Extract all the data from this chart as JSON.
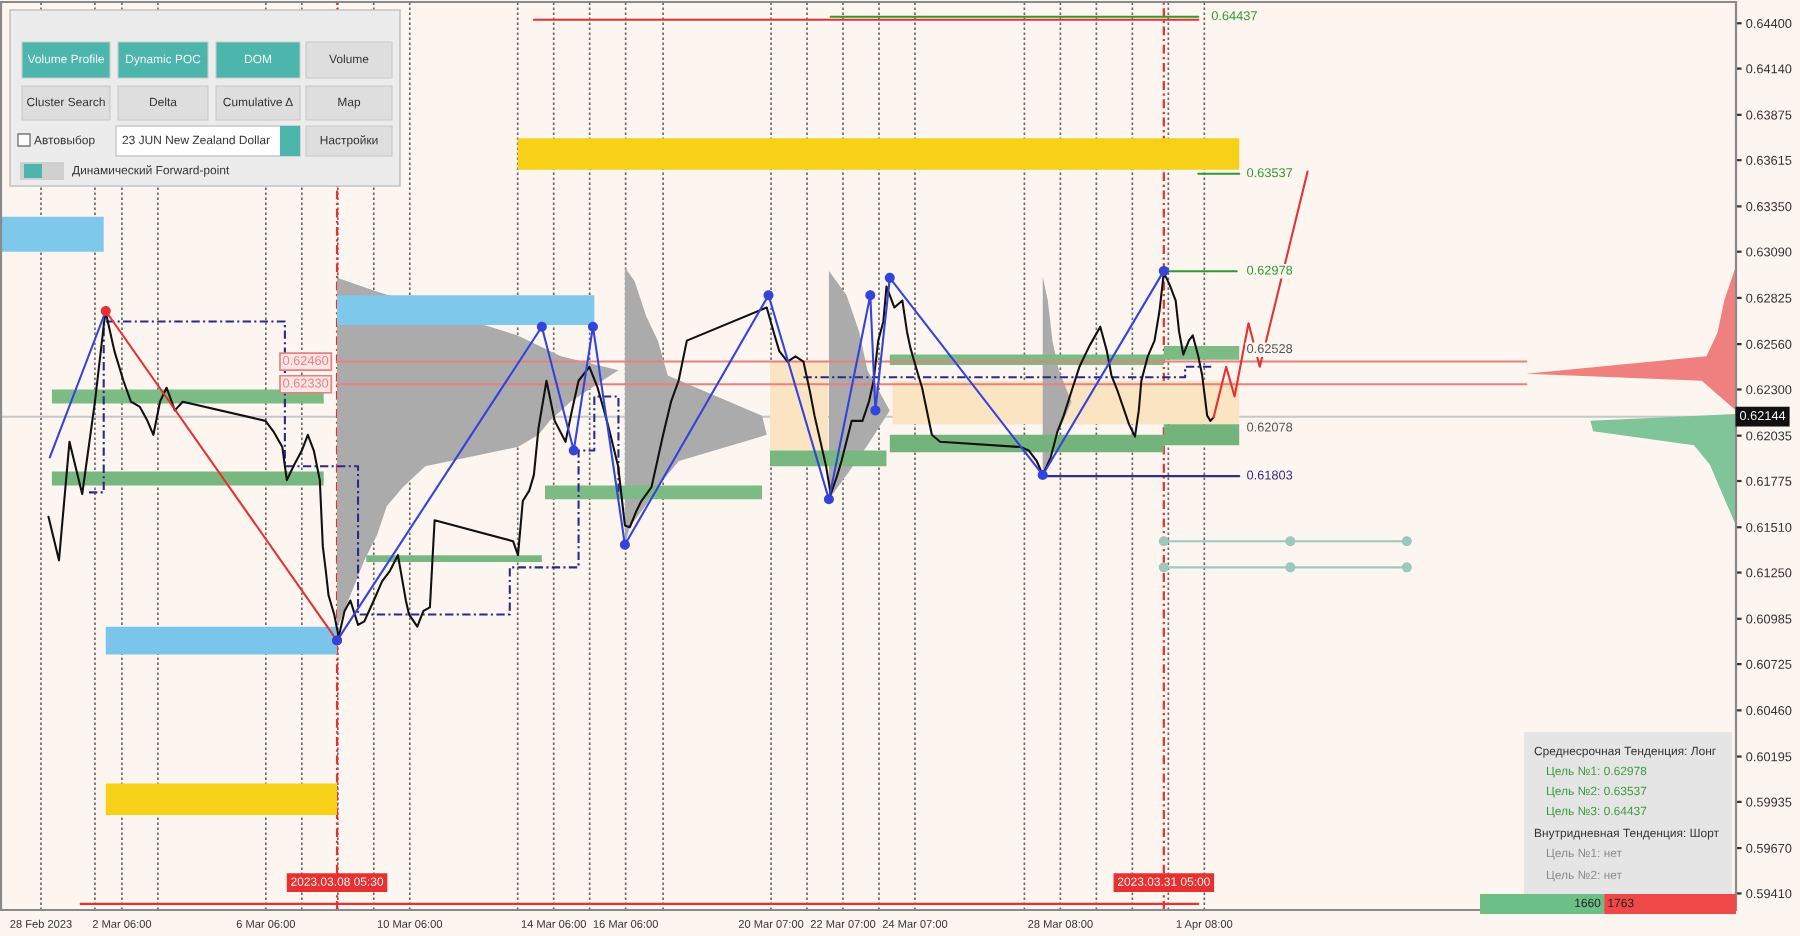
{
  "chart_data": [
    {
      "type": "line",
      "xlim": [
        "2023-02-26T21:20",
        "2023-04-16T02:40"
      ],
      "ylim": [
        0.59315,
        0.64522
      ],
      "xticks": [
        {
          "value": "2023-02-28T00:00",
          "label": "28 Feb 2023"
        },
        {
          "value": "2023-03-01T12:00",
          "label": null
        },
        {
          "value": "2023-03-02T06:00",
          "label": "2 Mar 06:00"
        },
        {
          "value": "2023-03-03T06:00",
          "label": null
        },
        {
          "value": "2023-03-06T06:00",
          "label": "6 Mar 06:00"
        },
        {
          "value": "2023-03-07T06:00",
          "label": null
        },
        {
          "value": "2023-03-08T06:00",
          "label": null
        },
        {
          "value": "2023-03-09T06:00",
          "label": null
        },
        {
          "value": "2023-03-10T06:00",
          "label": "10 Mar 06:00"
        },
        {
          "value": "2023-03-13T06:00",
          "label": null
        },
        {
          "value": "2023-03-14T06:00",
          "label": "14 Mar 06:00"
        },
        {
          "value": "2023-03-15T06:00",
          "label": null
        },
        {
          "value": "2023-03-16T06:00",
          "label": "16 Mar 06:00"
        },
        {
          "value": "2023-03-17T07:00",
          "label": null
        },
        {
          "value": "2023-03-20T07:00",
          "label": "20 Mar 07:00"
        },
        {
          "value": "2023-03-21T07:00",
          "label": null
        },
        {
          "value": "2023-03-22T07:00",
          "label": "22 Mar 07:00"
        },
        {
          "value": "2023-03-23T07:00",
          "label": null
        },
        {
          "value": "2023-03-24T07:00",
          "label": "24 Mar 07:00"
        },
        {
          "value": "2023-03-27T08:00",
          "label": null
        },
        {
          "value": "2023-03-28T08:00",
          "label": "28 Mar 08:00"
        },
        {
          "value": "2023-03-29T08:00",
          "label": null
        },
        {
          "value": "2023-03-30T08:00",
          "label": null
        },
        {
          "value": "2023-03-31T08:00",
          "label": null
        },
        {
          "value": "2023-04-01T08:00",
          "label": "1 Apr 08:00"
        }
      ],
      "yticks": [
        {
          "value": 0.644,
          "label": "0.64400"
        },
        {
          "value": 0.6414,
          "label": "0.64140"
        },
        0.63875,
        0.63615,
        {
          "value": 0.6335,
          "label": "0.63350"
        },
        {
          "value": 0.6309,
          "label": "0.63090"
        },
        0.62825,
        {
          "value": 0.6256,
          "label": "0.62560"
        },
        {
          "value": 0.623,
          "label": "0.62300"
        },
        0.62035,
        0.61775,
        {
          "value": 0.6151,
          "label": "0.61510"
        },
        {
          "value": 0.6125,
          "label": "0.61250"
        },
        0.60985,
        0.60725,
        {
          "value": 0.6046,
          "label": "0.60460"
        },
        0.60195,
        0.59935,
        {
          "value": 0.5967,
          "label": "0.59670"
        },
        {
          "value": 0.5941,
          "label": "0.59410"
        }
      ],
      "grid": "x",
      "series": [
        {
          "color": "#fbe4c2",
          "x": [
            "2023-03-20T06:17",
            "2023-03-21T21:00"
          ],
          "values": [
            null,
            null
          ],
          "lower": [
            0.6195,
            0.6195
          ],
          "upper": [
            0.6246,
            0.6246
          ]
        },
        {
          "color": "#fbe4c2",
          "x": [
            "2023-03-23T16:00",
            "2023-04-02T07:18"
          ],
          "values": [
            null,
            null
          ],
          "lower": [
            0.621,
            0.621
          ],
          "upper": [
            0.6235,
            0.6235
          ]
        },
        {
          "type": "area",
          "color": "#ababab",
          "x": [
            "2023-03-08T05:30",
            "2023-03-09T08:24",
            "2023-03-13T06:00",
            "2023-03-14T10:48",
            "2023-03-16T01:12",
            "2023-03-15T14:24",
            "2023-03-14T17:18",
            "2023-03-14T03:24",
            "2023-03-13T19:54",
            "2023-03-13T06:00",
            "2023-03-10T16:19",
            "2023-03-10T01:24",
            "2023-03-09T14:36",
            "2023-03-09T08:24",
            "2023-03-08T23:42",
            "2023-03-08T14:24",
            "2023-03-08T07:30",
            "2023-03-08T05:30"
          ],
          "values": [
            0.6294,
            0.6286,
            0.6261,
            0.6249,
            0.6241,
            0.6235,
            0.6223,
            0.6212,
            0.6204,
            0.6197,
            0.6186,
            0.6174,
            0.6163,
            0.6147,
            0.6132,
            0.6112,
            0.6097,
            0.6095
          ]
        },
        {
          "type": "area",
          "color": "#ababab",
          "x": [
            "2023-03-16T05:30",
            "2023-03-16T12:00",
            "2023-03-16T19:45",
            "2023-03-17T03:30",
            "2023-03-17T10:07",
            "2023-03-20T01:00",
            "2023-03-20T04:07",
            "2023-03-17T17:34",
            "2023-03-17T06:45",
            "2023-03-16T19:45",
            "2023-03-16T08:45",
            "2023-03-16T05:30"
          ],
          "values": [
            0.63,
            0.6292,
            0.6272,
            0.6258,
            0.6238,
            0.6215,
            0.6204,
            0.6189,
            0.6178,
            0.6164,
            0.6151,
            0.6141
          ]
        },
        {
          "type": "area",
          "color": "#ababab",
          "x": [
            "2023-03-21T21:36",
            "2023-03-22T09:24",
            "2023-03-22T17:48",
            "2023-03-22T23:18",
            "2023-03-23T14:12",
            "2023-03-22T23:18",
            "2023-03-22T09:24",
            "2023-03-21T21:36"
          ],
          "values": [
            0.6298,
            0.6284,
            0.6263,
            0.6241,
            0.6218,
            0.6198,
            0.6181,
            0.6167
          ]
        },
        {
          "type": "area",
          "color": "#ababab",
          "x": [
            "2023-03-27T20:12",
            "2023-03-27T23:36",
            "2023-03-28T02:42",
            "2023-03-28T07:00",
            "2023-03-28T15:24",
            "2023-03-28T07:00",
            "2023-03-28T00:36",
            "2023-03-27T20:12"
          ],
          "values": [
            0.6295,
            0.6281,
            0.6258,
            0.6241,
            0.6223,
            0.6206,
            0.6191,
            0.6181
          ]
        },
        {
          "type": "area",
          "color": "#f08080",
          "x": [
            "2023-04-16T02:40",
            "2023-04-15T18:48",
            "2023-04-15T14:30",
            "2023-04-15T07:00",
            "2023-04-10T06:48",
            "2023-04-15T03:54",
            "2023-04-15T14:30",
            "2023-04-16T02:40"
          ],
          "values": [
            0.6301,
            0.6281,
            0.6263,
            0.6249,
            0.6239,
            0.6235,
            0.6227,
            0.6218
          ]
        },
        {
          "type": "area",
          "color": "#80c49a",
          "x": [
            "2023-04-16T02:40",
            "2023-04-12T01:30",
            "2023-04-12T03:24",
            "2023-04-14T22:36",
            "2023-04-15T09:12",
            "2023-04-15T16:36",
            "2023-04-16T02:40"
          ],
          "values": [
            0.6216,
            0.6212,
            0.6206,
            0.6198,
            0.6187,
            0.6172,
            0.6152
          ]
        },
        {
          "color": "#7dbb85",
          "x": [
            "2023-02-28T07:18",
            "2023-03-07T20:36"
          ],
          "values": [
            null,
            null
          ],
          "lower": [
            0.6222,
            0.6222
          ],
          "upper": [
            0.623,
            0.623
          ]
        },
        {
          "color": "#78b880",
          "x": [
            "2023-02-28T07:18",
            "2023-03-07T20:36"
          ],
          "values": [
            null,
            null
          ],
          "lower": [
            0.6175,
            0.6175
          ],
          "upper": [
            0.6183,
            0.6183
          ]
        },
        {
          "color": "#7dbb85",
          "x": [
            "2023-03-14T00:12",
            "2023-03-20T01:00"
          ],
          "values": [
            null,
            null
          ],
          "lower": [
            0.6167,
            0.6167
          ],
          "upper": [
            0.6175,
            0.6175
          ]
        },
        {
          "color": "#78b880",
          "x": [
            "2023-03-20T06:17",
            "2023-03-23T12:00"
          ],
          "values": [
            null,
            null
          ],
          "lower": [
            0.6186,
            0.6186
          ],
          "upper": [
            0.6195,
            0.6195
          ]
        },
        {
          "color": "#7dbb85",
          "x": [
            "2023-03-23T14:12",
            "2023-03-31T05:00",
            "2023-03-31T05:00",
            "2023-04-02T07:18"
          ],
          "values": [
            null,
            null,
            null,
            null
          ],
          "lower": [
            0.6244,
            0.6244,
            0.6247,
            0.6247
          ],
          "upper": [
            0.625,
            0.625,
            0.6255,
            0.6255
          ]
        },
        {
          "color": "#74b47c",
          "x": [
            "2023-03-23T14:12",
            "2023-03-31T05:00",
            "2023-03-31T05:00",
            "2023-04-02T07:18"
          ],
          "values": [
            null,
            null,
            null,
            null
          ],
          "lower": [
            0.6194,
            0.6194,
            0.6198,
            0.6198
          ],
          "upper": [
            0.6204,
            0.6204,
            0.621,
            0.621
          ]
        },
        {
          "color": "#78b880",
          "x": [
            "2023-03-09T01:00",
            "2023-03-13T22:06"
          ],
          "values": [
            null,
            null
          ],
          "lower": [
            0.6131,
            0.6131
          ],
          "upper": [
            0.6135,
            0.6135
          ]
        },
        {
          "color": "#f7d117",
          "x": [
            "2023-03-13T06:00",
            "2023-04-02T07:18"
          ],
          "values": [
            null,
            null
          ],
          "lower": [
            0.6356,
            0.6356
          ],
          "upper": [
            0.6374,
            0.6374
          ]
        },
        {
          "color": "#7ec8ec",
          "x": [
            "2023-02-26T21:20",
            "2023-03-01T17:51"
          ],
          "values": [
            null,
            null
          ],
          "lower": [
            0.6309,
            0.6309
          ],
          "upper": [
            0.6329,
            0.6329
          ]
        },
        {
          "color": "#7ec8ec",
          "x": [
            "2023-03-08T05:30",
            "2023-03-15T09:06"
          ],
          "values": [
            null,
            null
          ],
          "lower": [
            0.6267,
            0.6267
          ],
          "upper": [
            0.6284,
            0.6284
          ]
        },
        {
          "color": "#7bc5ea",
          "x": [
            "2023-03-01T19:12",
            "2023-03-08T05:30"
          ],
          "values": [
            null,
            null
          ],
          "lower": [
            0.6078,
            0.6078
          ],
          "upper": [
            0.6094,
            0.6094
          ]
        },
        {
          "color": "#f7d117",
          "x": [
            "2023-03-01T19:12",
            "2023-03-08T05:30"
          ],
          "values": [
            null,
            null
          ],
          "lower": [
            0.5986,
            0.5986
          ],
          "upper": [
            0.6004,
            0.6004
          ]
        },
        {
          "color": "#e83030",
          "x": [
            "2023-03-13T16:48",
            "2023-04-01T04:00"
          ],
          "values": [
            0.6442,
            0.6442
          ]
        },
        {
          "color": "#e83030",
          "x": [
            "2023-03-01T02:30",
            "2023-04-01T04:00"
          ],
          "values": [
            0.5935,
            0.5935
          ]
        },
        {
          "color": "#2e9a2e",
          "x": [
            "2023-03-21T22:48",
            "2023-04-01T04:00"
          ],
          "values": [
            0.64437,
            0.64437
          ]
        },
        {
          "color": "#2e9a2e",
          "x": [
            "2023-04-01T04:00",
            "2023-04-02T07:18"
          ],
          "values": [
            0.63537,
            0.63537
          ]
        },
        {
          "color": "#2e9a2e",
          "x": [
            "2023-03-31T05:00",
            "2023-04-02T05:36"
          ],
          "values": [
            0.62978,
            0.62978
          ]
        },
        {
          "color": "#30308a",
          "x": [
            "2023-03-27T20:12",
            "2023-04-02T07:18"
          ],
          "values": [
            0.61803,
            0.61803
          ]
        },
        {
          "color": "#e88080",
          "x": [
            "2023-03-08T05:30",
            "2023-04-10T06:48"
          ],
          "values": [
            0.6246,
            0.6246
          ]
        },
        {
          "color": "#e88080",
          "x": [
            "2023-03-08T05:30",
            "2023-04-10T06:48"
          ],
          "values": [
            0.6233,
            0.6233
          ]
        },
        {
          "color": "#2a2a8c",
          "line_style": "dashed",
          "x": [
            "2023-03-01T08:00",
            "2023-03-01T17:51",
            "2023-03-01T17:51",
            "2023-03-06T18:42",
            "2023-03-06T18:42",
            "2023-03-08T19:30",
            "2023-03-08T19:30",
            "2023-03-13T00:43",
            "2023-03-13T00:43",
            "2023-03-14T22:36",
            "2023-03-14T22:36",
            "2023-03-15T09:06",
            "2023-03-15T09:06",
            "2023-03-16T01:12",
            "2023-03-16T01:12"
          ],
          "values": [
            0.6171,
            0.6171,
            0.6269,
            0.6269,
            0.6186,
            0.6186,
            0.6101,
            0.6101,
            0.6128,
            0.6128,
            0.6195,
            0.6195,
            0.6226,
            0.6226,
            0.617
          ]
        },
        {
          "color": "#2a2a8c",
          "line_style": "dashed",
          "x": [
            "2023-03-21T04:36",
            "2023-03-31T19:12",
            "2023-03-31T19:12",
            "2023-04-01T13:18"
          ],
          "values": [
            0.6237,
            0.6237,
            0.6243,
            0.6243
          ]
        },
        {
          "color": "#9cc8be",
          "marker": "circle",
          "x": [
            "2023-03-31T05:00",
            "2023-04-03T17:24",
            "2023-04-06T23:06"
          ],
          "values": [
            0.6143,
            0.6143,
            0.6143
          ]
        },
        {
          "color": "#9cc8be",
          "marker": "circle",
          "x": [
            "2023-03-31T05:00",
            "2023-04-03T17:24",
            "2023-04-06T23:06"
          ],
          "values": [
            0.6128,
            0.6128,
            0.6128
          ]
        },
        {
          "color": "#111111",
          "x": [
            "2023-02-28T05:00",
            "2023-02-28T12:00",
            "2023-02-28T19:00",
            "2023-03-01T03:30",
            "2023-03-01T12:00",
            "2023-03-01T19:00",
            "2023-03-02T01:00",
            "2023-03-02T07:00",
            "2023-03-02T12:00",
            "2023-03-02T18:00",
            "2023-03-02T23:00",
            "2023-03-03T03:00",
            "2023-03-03T07:24",
            "2023-03-03T11:46",
            "2023-03-03T17:17",
            "2023-03-03T22:34",
            "2023-03-06T05:46",
            "2023-03-06T11:00",
            "2023-03-06T17:00",
            "2023-03-06T20:00",
            "2023-03-07T01:00",
            "2023-03-07T06:00",
            "2023-03-07T10:00",
            "2023-03-07T14:00",
            "2023-03-07T18:00",
            "2023-03-07T20:00",
            "2023-03-07T22:00",
            "2023-03-07T23:48",
            "2023-03-08T03:36",
            "2023-03-08T06:36",
            "2023-03-08T10:30",
            "2023-03-08T14:24",
            "2023-03-08T19:30",
            "2023-03-08T23:42",
            "2023-03-09T06:00",
            "2023-03-09T11:30",
            "2023-03-09T16:48",
            "2023-03-09T22:06",
            "2023-03-10T03:24",
            "2023-03-10T05:30",
            "2023-03-10T11:02",
            "2023-03-10T15:07",
            "2023-03-10T19:26",
            "2023-03-10T22:34",
            "2023-03-13T02:53",
            "2023-03-13T06:12",
            "2023-03-13T09:24",
            "2023-03-13T13:42",
            "2023-03-13T16:48",
            "2023-03-13T19:54",
            "2023-03-14T01:12",
            "2023-03-14T06:42",
            "2023-03-14T13:54",
            "2023-03-14T18:12",
            "2023-03-14T22:36",
            "2023-03-15T05:48",
            "2023-03-15T11:18",
            "2023-03-15T15:36",
            "2023-03-15T18:42",
            "2023-03-16T01:00",
            "2023-03-16T05:30",
            "2023-03-16T08:45",
            "2023-03-16T13:00",
            "2023-03-16T16:30",
            "2023-03-16T23:15",
            "2023-03-17T07:00",
            "2023-03-17T12:17",
            "2023-03-17T17:19",
            "2023-03-17T22:50",
            "2023-03-20T04:07",
            "2023-03-20T09:24",
            "2023-03-20T12:30",
            "2023-03-20T18:00",
            "2023-03-20T23:18",
            "2023-03-21T04:36",
            "2023-03-21T08:54",
            "2023-03-21T12:00",
            "2023-03-21T19:42",
            "2023-03-21T22:48",
            "2023-03-22T02:54",
            "2023-03-22T06:00",
            "2023-03-22T12:48",
            "2023-03-22T20:00",
            "2023-03-23T00:18",
            "2023-03-23T03:24",
            "2023-03-23T06:30",
            "2023-03-23T09:54",
            "2023-03-23T12:00",
            "2023-03-23T17:18",
            "2023-03-23T22:36",
            "2023-03-24T01:42",
            "2023-03-24T03:54",
            "2023-03-24T08:15",
            "2023-03-24T11:45",
            "2023-03-24T18:15",
            "2023-03-24T23:45",
            "2023-03-27T05:30",
            "2023-03-27T10:54",
            "2023-03-27T16:12",
            "2023-03-27T20:12",
            "2023-03-28T01:30",
            "2023-03-28T06:06",
            "2023-03-28T10:12",
            "2023-03-28T15:24",
            "2023-03-28T20:42",
            "2023-03-29T03:24",
            "2023-03-29T10:36",
            "2023-03-29T15:00",
            "2023-03-29T18:06",
            "2023-03-29T22:12",
            "2023-03-30T01:48",
            "2023-03-30T05:48",
            "2023-03-30T09:45",
            "2023-03-30T12:18",
            "2023-03-30T14:00",
            "2023-03-30T18:18",
            "2023-03-30T22:48",
            "2023-03-31T02:06",
            "2023-03-31T05:00",
            "2023-03-31T08:54",
            "2023-03-31T12:54",
            "2023-03-31T15:12",
            "2023-03-31T18:00",
            "2023-03-31T21:42",
            "2023-04-01T00:18",
            "2023-04-01T04:00",
            "2023-04-01T06:36",
            "2023-04-01T09:54",
            "2023-04-01T12:06",
            "2023-04-01T14:12"
          ],
          "values": [
            0.6157,
            0.6132,
            0.62,
            0.617,
            0.6223,
            0.6275,
            0.6252,
            0.6235,
            0.6223,
            0.622,
            0.6212,
            0.6204,
            0.6223,
            0.6231,
            0.6218,
            0.6223,
            0.6212,
            0.6206,
            0.6197,
            0.6178,
            0.6187,
            0.6195,
            0.6204,
            0.6195,
            0.6178,
            0.614,
            0.6126,
            0.6112,
            0.6101,
            0.6088,
            0.6103,
            0.6109,
            0.6095,
            0.6097,
            0.6109,
            0.612,
            0.6126,
            0.6135,
            0.6109,
            0.6101,
            0.6094,
            0.6103,
            0.6105,
            0.6155,
            0.6143,
            0.6135,
            0.6166,
            0.6172,
            0.6181,
            0.6208,
            0.6235,
            0.6212,
            0.62,
            0.6218,
            0.6235,
            0.6243,
            0.6231,
            0.6218,
            0.6208,
            0.6186,
            0.6152,
            0.6151,
            0.616,
            0.6166,
            0.6174,
            0.6204,
            0.6223,
            0.6235,
            0.6258,
            0.6277,
            0.6261,
            0.6252,
            0.6246,
            0.6249,
            0.6246,
            0.6229,
            0.6215,
            0.6186,
            0.617,
            0.618,
            0.6189,
            0.6212,
            0.6212,
            0.6223,
            0.6235,
            0.6258,
            0.6269,
            0.6289,
            0.6277,
            0.6281,
            0.6263,
            0.6254,
            0.6241,
            0.6231,
            0.6204,
            0.62,
            0.6197,
            0.6195,
            0.6189,
            0.6181,
            0.6191,
            0.6206,
            0.6215,
            0.6229,
            0.6243,
            0.6255,
            0.6266,
            0.6252,
            0.6238,
            0.6229,
            0.622,
            0.621,
            0.6203,
            0.6218,
            0.6235,
            0.6249,
            0.6258,
            0.6275,
            0.6297,
            0.629,
            0.6281,
            0.6263,
            0.625,
            0.6258,
            0.6261,
            0.6249,
            0.6238,
            0.6215,
            0.6212,
            0.6214
          ]
        },
        {
          "color": "#3344dd",
          "x": [
            "2023-02-28T05:54",
            "2023-03-01T19:12"
          ],
          "values": [
            0.6191,
            0.6275
          ]
        },
        {
          "color": "#e83030",
          "marker": "circle",
          "x": [
            "2023-03-01T19:12",
            "2023-03-08T05:30"
          ],
          "values": [
            0.6275,
            0.6086
          ]
        },
        {
          "color": "#3344dd",
          "marker": "circle",
          "x": [
            "2023-03-08T05:30",
            "2023-03-13T22:06",
            "2023-03-14T19:24",
            "2023-03-15T08:12",
            "2023-03-16T05:30",
            "2023-03-20T05:19",
            "2023-03-21T21:36",
            "2023-03-23T01:12",
            "2023-03-23T04:36",
            "2023-03-23T14:12",
            "2023-03-27T20:12",
            "2023-03-31T05:00"
          ],
          "values": [
            0.6086,
            0.6266,
            0.6195,
            0.6266,
            0.6141,
            0.6284,
            0.6167,
            0.6284,
            0.6218,
            0.6294,
            0.6181,
            0.6298
          ]
        },
        {
          "color": "#e83030",
          "x": [
            "2023-04-01T14:12",
            "2023-04-01T22:36",
            "2023-04-02T04:12",
            "2023-04-02T13:30",
            "2023-04-02T21:00",
            "2023-04-04T04:54"
          ],
          "values": [
            0.6214,
            0.6243,
            0.6226,
            0.6268,
            0.6243,
            0.6355
          ]
        }
      ],
      "ref_lines": [
        {
          "axis": "y",
          "value": 0.62144,
          "label": "0.62144",
          "color": "#c8c8c8"
        },
        {
          "axis": "x",
          "value": "2023-03-08T05:30",
          "label": "2023.03.08 05:30",
          "color": "#e83030",
          "line_style": "dashed"
        },
        {
          "axis": "x",
          "value": "2023-03-31T05:00",
          "label": "2023.03.31 05:00",
          "color": "#e83030",
          "line_style": "dashed"
        }
      ],
      "annotations": [
        "Volume Profile",
        "Dynamic POC",
        "DOM",
        "Volume",
        "Cluster Search",
        "Delta",
        "Cumulative Δ",
        "Map",
        "Автовыбор",
        "23 JUN New Zealand Dollar",
        "Настройки",
        "Динамический Forward-point",
        "Среднесрочная Тенденция: Лонг",
        "Цель №1: 0.62978",
        "Цель №2: 0.63537",
        "Цель №3: 0.64437",
        "Внутридневная Тенденция: Шорт",
        "Цель №1: нет",
        "Цель №2: нет",
        {
          "text": "0.64437",
          "x": "2023-04-01T09:54",
          "y": 0.64437
        },
        {
          "text": "0.63537",
          "x": "2023-04-02T09:24",
          "y": 0.63537
        },
        {
          "text": "0.62978",
          "x": "2023-04-02T09:24",
          "y": 0.62978
        },
        {
          "text": "0.62528",
          "x": "2023-04-02T09:24",
          "y": 0.62528
        },
        {
          "text": "0.62078",
          "x": "2023-04-02T09:24",
          "y": 0.62078
        },
        {
          "text": "0.61803",
          "x": "2023-04-02T09:24",
          "y": 0.61803
        },
        {
          "text": "0.62460",
          "x": "2023-03-08T05:30",
          "y": 0.6246
        },
        {
          "text": "0.62330",
          "x": "2023-03-08T05:30",
          "y": 0.6233
        }
      ]
    },
    {
      "type": "bar",
      "orientation": "horizontal",
      "stacked": true,
      "categories": [
        null
      ],
      "xlim": [
        0,
        3423
      ],
      "data_labels": true,
      "series": [
        {
          "color": "#6cbf86",
          "values": [
            1660
          ]
        },
        {
          "color": "#f04848",
          "values": [
            1763
          ]
        }
      ]
    }
  ]
}
